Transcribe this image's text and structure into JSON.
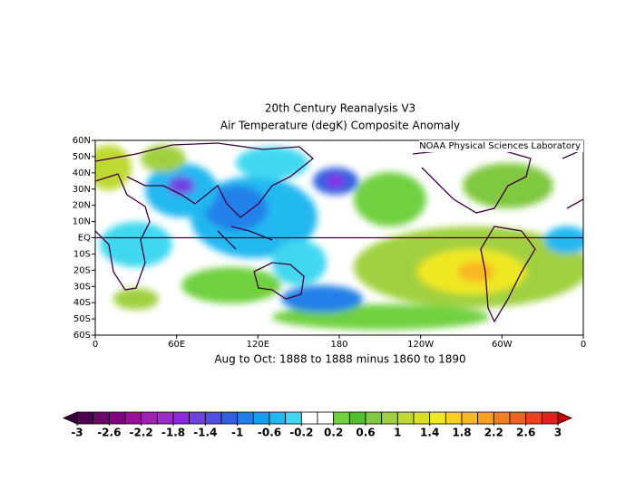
{
  "chart_data": {
    "type": "contour-map",
    "title": "20th Century Reanalysis V3",
    "subtitle": "Air Temperature (degK) Composite Anomaly",
    "credit": "NOAA Physical Sciences Laboratory",
    "x_label": "Aug to Oct: 1888 to 1888 minus 1860 to 1890",
    "xlim": [
      0,
      360
    ],
    "xticks": [
      0,
      {
        "value": 60,
        "label": "60E"
      },
      {
        "value": 120,
        "label": "120E"
      },
      180,
      {
        "value": 240,
        "label": "120W"
      },
      {
        "value": 300,
        "label": "60W"
      },
      {
        "value": 360,
        "label": "0"
      }
    ],
    "ylim": [
      -60,
      60
    ],
    "yticks": [
      {
        "value": 60,
        "label": "60N"
      },
      {
        "value": 50,
        "label": "50N"
      },
      {
        "value": 40,
        "label": "40N"
      },
      {
        "value": 30,
        "label": "30N"
      },
      {
        "value": 20,
        "label": "20N"
      },
      {
        "value": 10,
        "label": "10N"
      },
      {
        "value": 0,
        "label": "EQ"
      },
      {
        "value": -10,
        "label": "10S"
      },
      {
        "value": -20,
        "label": "20S"
      },
      {
        "value": -30,
        "label": "30S"
      },
      {
        "value": -40,
        "label": "40S"
      },
      {
        "value": -50,
        "label": "50S"
      },
      {
        "value": -60,
        "label": "60S"
      }
    ],
    "colorbar": {
      "range": [
        -3,
        3
      ],
      "ticks": [
        -3,
        -2.6,
        -2.2,
        -1.8,
        -1.4,
        -1,
        -0.6,
        -0.2,
        0.2,
        0.6,
        1,
        1.4,
        1.8,
        2.2,
        2.6,
        3
      ],
      "under_color": "#3a003a",
      "over_color": "#c00000",
      "colors": [
        "#500050",
        "#6a0a6a",
        "#800080",
        "#96109a",
        "#a020b0",
        "#9a2cc8",
        "#8a2be2",
        "#7040e0",
        "#5050e0",
        "#3060e0",
        "#2080e8",
        "#10a0f0",
        "#20b8f0",
        "#40d8f0",
        "#ffffff",
        "#ffffff",
        "#70d040",
        "#50c030",
        "#80c840",
        "#a0d040",
        "#c0d830",
        "#d8e020",
        "#f0e820",
        "#f8d020",
        "#f8b820",
        "#f8a020",
        "#f08020",
        "#f06020",
        "#f04020",
        "#e02020"
      ]
    }
  }
}
